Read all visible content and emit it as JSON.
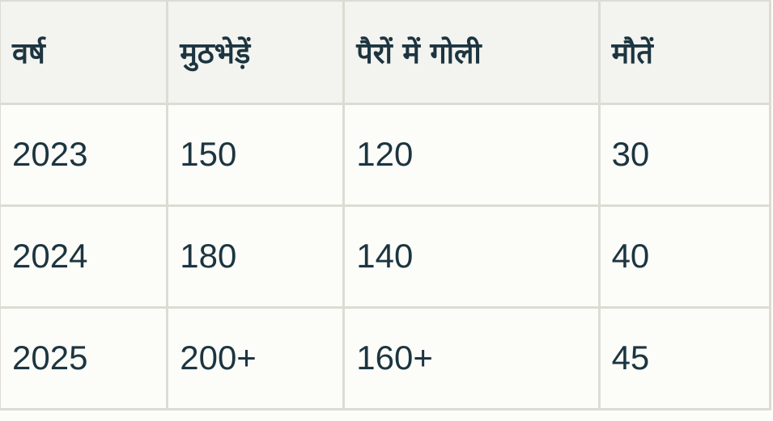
{
  "table": {
    "headers": [
      "वर्ष",
      "मुठभेड़ें",
      "पैरों में गोली",
      "मौतें"
    ],
    "rows": [
      [
        "2023",
        "150",
        "120",
        "30"
      ],
      [
        "2024",
        "180",
        "140",
        "40"
      ],
      [
        "2025",
        "200+",
        "160+",
        "45"
      ]
    ]
  },
  "colors": {
    "header_bg": "#f3f3ef",
    "body_bg": "#fcfdf9",
    "border": "#dcdcd4",
    "text": "#1c3540"
  }
}
